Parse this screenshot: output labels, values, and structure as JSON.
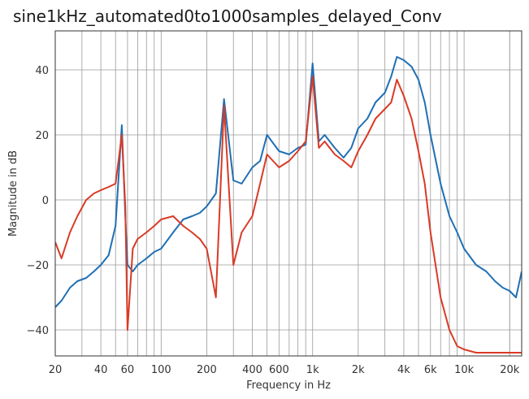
{
  "chart_data": {
    "type": "line",
    "title": "sine1kHz_automated0to1000samples_delayed_Conv",
    "xlabel": "Frequency in Hz",
    "ylabel": "Magnitude in dB",
    "xscale": "log",
    "xlim": [
      20,
      24000
    ],
    "ylim": [
      -48,
      52
    ],
    "grid": true,
    "legend": "none",
    "x_ticks": [
      {
        "value": 20,
        "label": "20"
      },
      {
        "value": 40,
        "label": "40"
      },
      {
        "value": 60,
        "label": "60"
      },
      {
        "value": 100,
        "label": "100"
      },
      {
        "value": 200,
        "label": "200"
      },
      {
        "value": 400,
        "label": "400"
      },
      {
        "value": 600,
        "label": "600"
      },
      {
        "value": 1000,
        "label": "1k"
      },
      {
        "value": 2000,
        "label": "2k"
      },
      {
        "value": 4000,
        "label": "4k"
      },
      {
        "value": 6000,
        "label": "6k"
      },
      {
        "value": 10000,
        "label": "10k"
      },
      {
        "value": 20000,
        "label": "20k"
      }
    ],
    "y_ticks": [
      {
        "value": -40,
        "label": "−40"
      },
      {
        "value": -20,
        "label": "−20"
      },
      {
        "value": 0,
        "label": "0"
      },
      {
        "value": 20,
        "label": "20"
      },
      {
        "value": 40,
        "label": "40"
      }
    ],
    "series": [
      {
        "color": "#1f6fb4",
        "x": [
          20,
          22,
          25,
          28,
          32,
          36,
          40,
          45,
          50,
          55,
          58,
          60,
          65,
          70,
          80,
          90,
          100,
          120,
          140,
          160,
          180,
          200,
          230,
          260,
          300,
          340,
          400,
          450,
          500,
          600,
          700,
          800,
          900,
          1000,
          1100,
          1200,
          1400,
          1600,
          1800,
          2000,
          2300,
          2600,
          3000,
          3300,
          3600,
          4000,
          4500,
          5000,
          5500,
          6000,
          7000,
          8000,
          9000,
          10000,
          12000,
          14000,
          16000,
          18000,
          20000,
          22000,
          24000
        ],
        "y": [
          -33,
          -31,
          -27,
          -25,
          -24,
          -22,
          -20,
          -17,
          -8,
          23,
          -5,
          -20,
          -22,
          -20,
          -18,
          -16,
          -15,
          -10,
          -6,
          -5,
          -4,
          -2,
          2,
          31,
          6,
          5,
          10,
          12,
          20,
          15,
          14,
          16,
          17,
          42,
          18,
          20,
          16,
          13,
          16,
          22,
          25,
          30,
          33,
          38,
          44,
          43,
          41,
          37,
          30,
          20,
          5,
          -5,
          -10,
          -15,
          -20,
          -22,
          -25,
          -27,
          -28,
          -30,
          -22
        ]
      },
      {
        "color": "#d93a26",
        "x": [
          20,
          22,
          25,
          28,
          32,
          36,
          40,
          45,
          50,
          55,
          58,
          60,
          65,
          70,
          80,
          90,
          100,
          120,
          140,
          160,
          180,
          200,
          230,
          260,
          300,
          340,
          400,
          450,
          500,
          600,
          700,
          800,
          900,
          1000,
          1100,
          1200,
          1400,
          1600,
          1800,
          2000,
          2300,
          2600,
          3000,
          3300,
          3600,
          4000,
          4500,
          5000,
          5500,
          6000,
          7000,
          8000,
          9000,
          10000,
          12000,
          14000,
          16000,
          18000,
          20000,
          22000,
          24000
        ],
        "y": [
          -13,
          -18,
          -10,
          -5,
          0,
          2,
          3,
          4,
          5,
          20,
          -2,
          -40,
          -15,
          -12,
          -10,
          -8,
          -6,
          -5,
          -8,
          -10,
          -12,
          -15,
          -30,
          29,
          -20,
          -10,
          -5,
          5,
          14,
          10,
          12,
          15,
          18,
          38,
          16,
          18,
          14,
          12,
          10,
          15,
          20,
          25,
          28,
          30,
          37,
          32,
          25,
          15,
          5,
          -10,
          -30,
          -40,
          -45,
          -46,
          -47,
          -47,
          -47,
          -47,
          -47,
          -47,
          -47
        ]
      }
    ]
  }
}
